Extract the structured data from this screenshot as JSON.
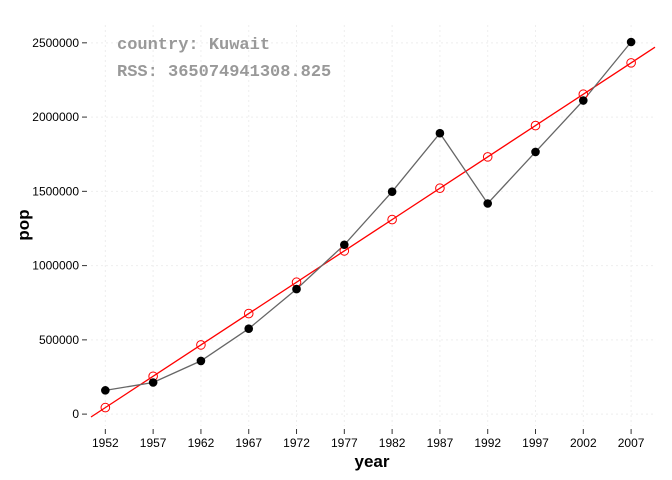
{
  "chart_data": {
    "type": "scatter",
    "xlabel": "year",
    "ylabel": "pop",
    "annotations": [
      "country: Kuwait",
      "RSS: 365074941308.825"
    ],
    "x": [
      1952,
      1957,
      1962,
      1967,
      1972,
      1977,
      1982,
      1987,
      1992,
      1997,
      2002,
      2007
    ],
    "x_ticks": [
      1952,
      1957,
      1962,
      1967,
      1972,
      1977,
      1982,
      1987,
      1992,
      1997,
      2002,
      2007
    ],
    "y_ticks": [
      0,
      500000,
      1000000,
      1500000,
      2000000,
      2500000
    ],
    "xlim": [
      1950.5,
      2009.5
    ],
    "ylim": [
      -80000,
      2620000
    ],
    "grid": true,
    "series": [
      {
        "kind": "observed",
        "style": "filled points joined by a gray line",
        "color": "#000000",
        "line_color": "#666666",
        "values": [
          160000,
          212846,
          358266,
          575003,
          841934,
          1140357,
          1497494,
          1891487,
          1418095,
          1765345,
          2111561,
          2505559
        ]
      },
      {
        "kind": "fitted",
        "style": "open circles on a red regression line",
        "color": "#ff0000",
        "values": [
          44000,
          255000,
          466000,
          677000,
          888000,
          1099000,
          1310000,
          1521000,
          1732000,
          1943000,
          2154000,
          2365000
        ]
      }
    ]
  }
}
